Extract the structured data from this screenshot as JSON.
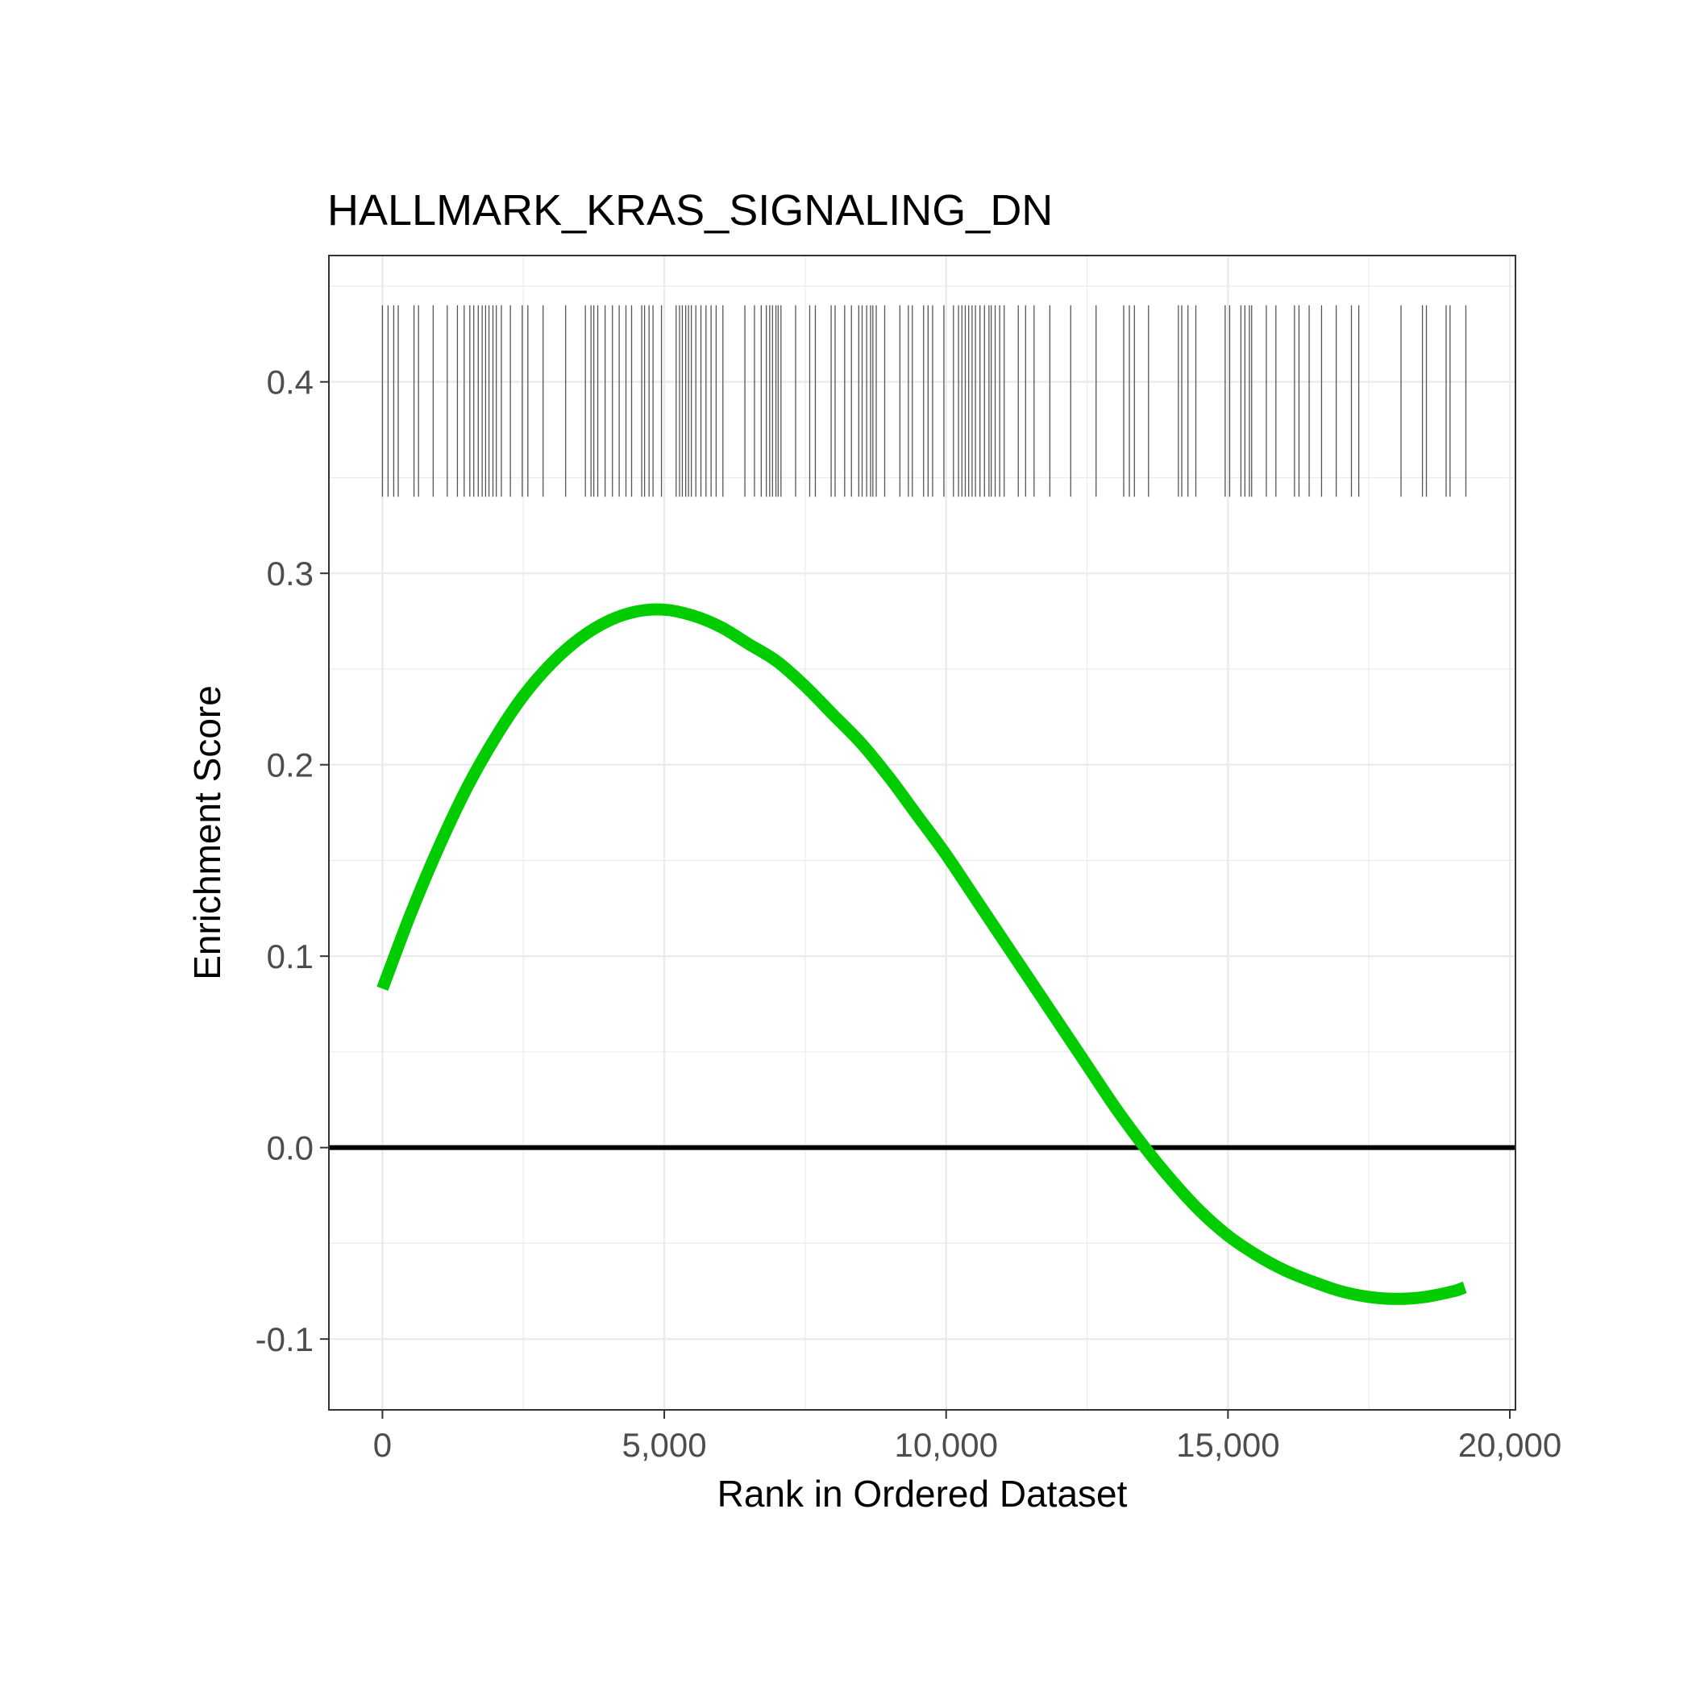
{
  "chart_data": {
    "type": "line",
    "title": "HALLMARK_KRAS_SIGNALING_DN",
    "xlabel": "Rank in Ordered Dataset",
    "ylabel": "Enrichment Score",
    "xlim": [
      -950,
      20100
    ],
    "ylim": [
      -0.137,
      0.466
    ],
    "x_ticks": [
      0,
      5000,
      10000,
      15000,
      20000
    ],
    "x_tick_labels": [
      "0",
      "5,000",
      "10,000",
      "15,000",
      "20,000"
    ],
    "y_ticks": [
      -0.1,
      0.0,
      0.1,
      0.2,
      0.3,
      0.4
    ],
    "y_tick_labels": [
      "-0.1",
      "0.0",
      "0.1",
      "0.2",
      "0.3",
      "0.4"
    ],
    "grid": true,
    "legend": "none",
    "zero_line": 0.0,
    "colors": {
      "curve": "#00cc00",
      "zero_line": "#000000",
      "hits": "#555555",
      "grid": "#ebebeb",
      "panel_border": "#333333"
    },
    "series": [
      {
        "x": [
          0,
          500,
          1000,
          1500,
          2000,
          2500,
          3000,
          3500,
          4000,
          4500,
          5000,
          5500,
          6000,
          6500,
          7000,
          7500,
          8000,
          8500,
          9000,
          9500,
          10000,
          10500,
          11000,
          11500,
          12000,
          12500,
          13000,
          13500,
          14000,
          14500,
          15000,
          15500,
          16000,
          16500,
          17000,
          17500,
          18000,
          18500,
          19000,
          19200
        ],
        "values": [
          0.083,
          0.122,
          0.157,
          0.188,
          0.214,
          0.236,
          0.253,
          0.266,
          0.275,
          0.28,
          0.281,
          0.278,
          0.272,
          0.263,
          0.254,
          0.241,
          0.226,
          0.211,
          0.193,
          0.173,
          0.153,
          0.131,
          0.109,
          0.087,
          0.065,
          0.043,
          0.021,
          0.001,
          -0.017,
          -0.033,
          -0.046,
          -0.056,
          -0.064,
          -0.07,
          -0.075,
          -0.078,
          -0.079,
          -0.078,
          -0.075,
          -0.073
        ]
      }
    ],
    "hits_band": [
      0.34,
      0.44
    ],
    "hit_positions": [
      0,
      100,
      200,
      280,
      560,
      640,
      900,
      1150,
      1330,
      1450,
      1550,
      1620,
      1700,
      1770,
      1830,
      1890,
      1960,
      2020,
      2110,
      2270,
      2480,
      2580,
      2850,
      3250,
      3600,
      3700,
      3750,
      3820,
      3950,
      4080,
      4200,
      4320,
      4420,
      4600,
      4650,
      4730,
      4800,
      4950,
      5210,
      5270,
      5320,
      5380,
      5430,
      5480,
      5560,
      5650,
      5740,
      5830,
      5920,
      6040,
      6430,
      6600,
      6720,
      6810,
      6870,
      6920,
      6980,
      7020,
      7070,
      7330,
      7580,
      7680,
      7960,
      8030,
      8200,
      8320,
      8450,
      8510,
      8590,
      8660,
      8700,
      8760,
      8910,
      9180,
      9330,
      9400,
      9600,
      9680,
      9760,
      9960,
      10130,
      10220,
      10280,
      10340,
      10400,
      10460,
      10520,
      10600,
      10680,
      10760,
      10800,
      10870,
      10950,
      11030,
      11280,
      11410,
      11560,
      11840,
      12210,
      12660,
      13150,
      13250,
      13340,
      13590,
      14120,
      14180,
      14290,
      14430,
      14950,
      15030,
      15230,
      15300,
      15380,
      15420,
      15680,
      15850,
      16180,
      16260,
      16440,
      16660,
      16920,
      17190,
      17320,
      18070,
      18450,
      18520,
      18870,
      18940,
      19220
    ]
  }
}
